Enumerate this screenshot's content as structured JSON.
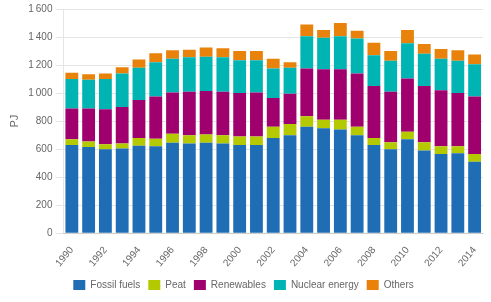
{
  "chart_data": {
    "type": "bar",
    "stacked": true,
    "y_label": "PJ",
    "categories": [
      "1990",
      null,
      "1992",
      null,
      "1994",
      null,
      "1996",
      null,
      "1998",
      null,
      "2000",
      null,
      "2002",
      null,
      "2004",
      null,
      "2006",
      null,
      "2008",
      null,
      "2010",
      null,
      "2012",
      null,
      "2014"
    ],
    "series": [
      {
        "name": "Fossil fuels",
        "color": "#1f6eb5",
        "values": [
          630,
          615,
          600,
          605,
          625,
          620,
          645,
          640,
          645,
          640,
          630,
          630,
          680,
          700,
          760,
          750,
          740,
          700,
          630,
          600,
          670,
          590,
          565,
          570,
          510
        ]
      },
      {
        "name": "Peat",
        "color": "#b5c900",
        "values": [
          40,
          40,
          35,
          35,
          55,
          55,
          65,
          60,
          60,
          60,
          60,
          60,
          80,
          80,
          75,
          60,
          70,
          60,
          50,
          50,
          55,
          60,
          55,
          50,
          55
        ]
      },
      {
        "name": "Renewables",
        "color": "#a0006e",
        "values": [
          220,
          235,
          250,
          260,
          270,
          300,
          295,
          310,
          310,
          310,
          310,
          315,
          205,
          215,
          340,
          360,
          360,
          380,
          370,
          360,
          380,
          400,
          400,
          380,
          410
        ]
      },
      {
        "name": "Nuclear energy",
        "color": "#00b4b4",
        "values": [
          210,
          205,
          215,
          240,
          230,
          245,
          240,
          245,
          245,
          245,
          235,
          230,
          210,
          185,
          230,
          225,
          235,
          250,
          220,
          220,
          250,
          230,
          225,
          230,
          230
        ]
      },
      {
        "name": "Others",
        "color": "#e8820a",
        "values": [
          45,
          40,
          40,
          45,
          60,
          65,
          60,
          55,
          65,
          65,
          65,
          65,
          70,
          40,
          85,
          55,
          95,
          55,
          90,
          70,
          95,
          70,
          70,
          75,
          70
        ]
      }
    ],
    "ylim": [
      0,
      1600
    ],
    "yticks": [
      0,
      200,
      400,
      600,
      800,
      {
        "value": 1000,
        "label": "1 000"
      },
      {
        "value": 1200,
        "label": "1 200"
      },
      {
        "value": 1400,
        "label": "1 400"
      },
      {
        "value": 1600,
        "label": "1 600"
      }
    ],
    "grid": true,
    "legend": "bottom"
  }
}
